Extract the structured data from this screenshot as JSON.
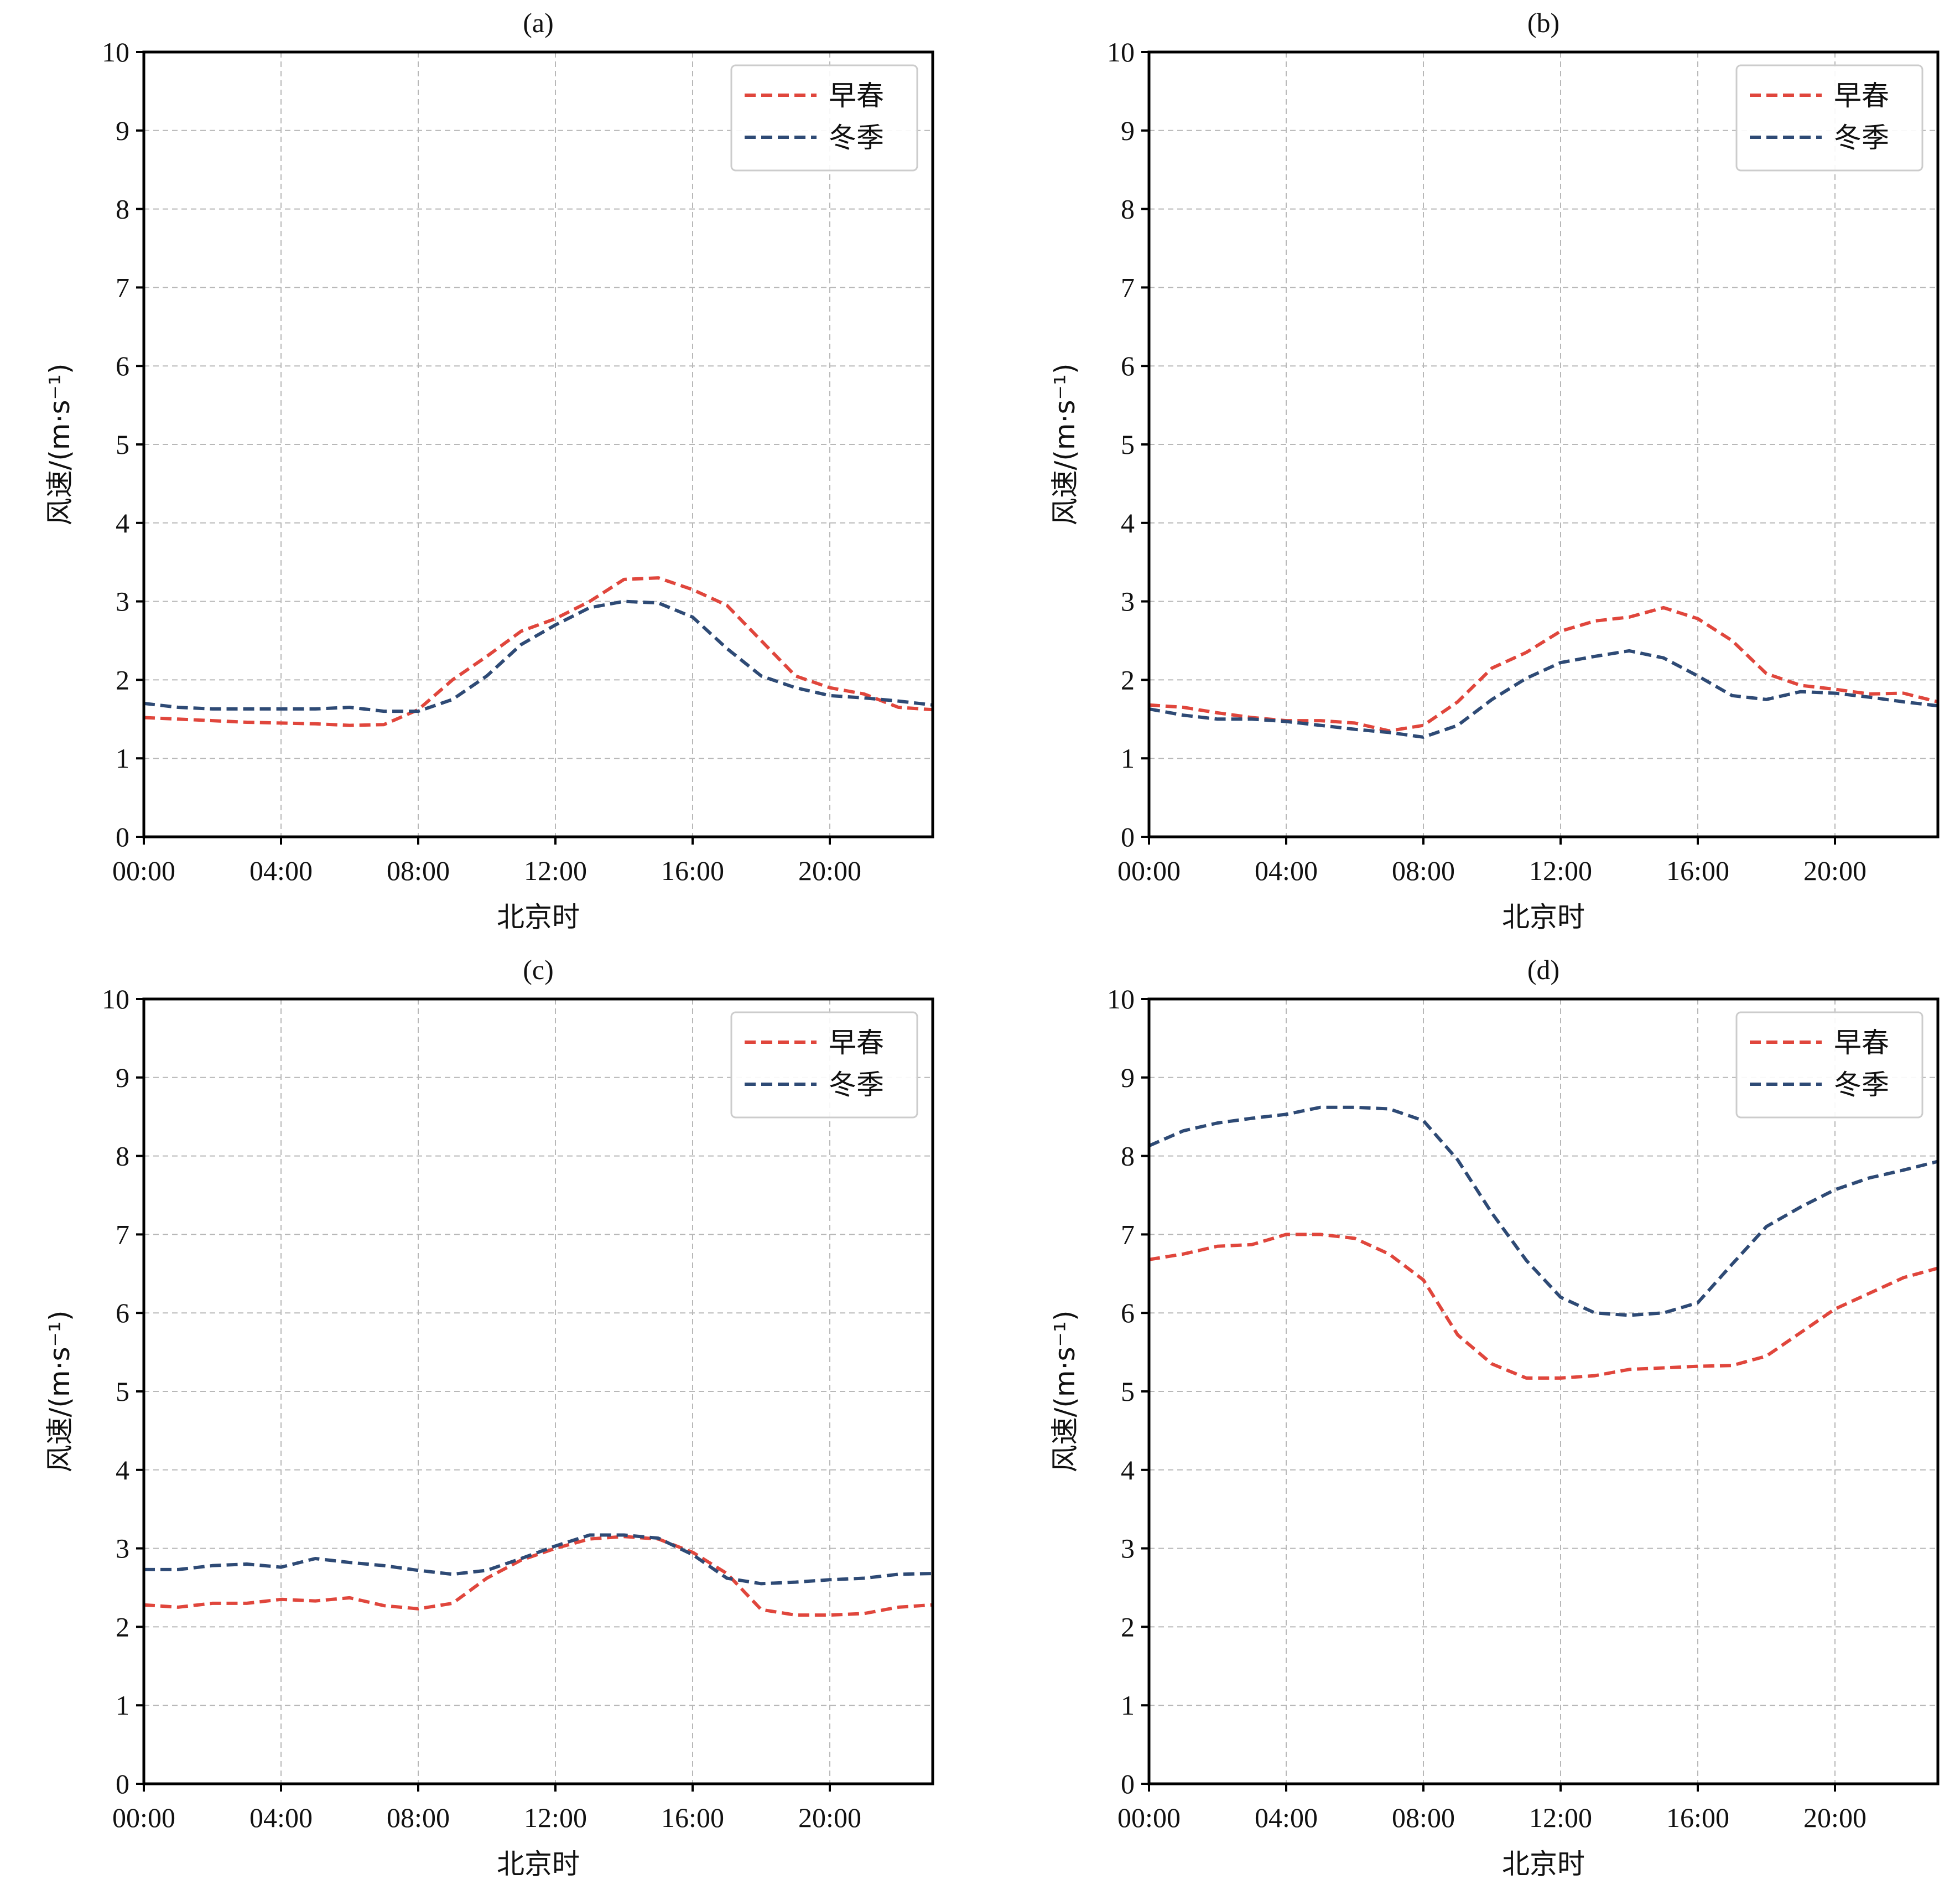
{
  "chart_data": [
    {
      "type": "line",
      "title": "(a)",
      "xlabel": "北京时",
      "ylabel": "风速/(m·s⁻¹)",
      "x": [
        0,
        1,
        2,
        3,
        4,
        5,
        6,
        7,
        8,
        9,
        10,
        11,
        12,
        13,
        14,
        15,
        16,
        17,
        18,
        19,
        20,
        21,
        22,
        23
      ],
      "xticks": [
        0,
        4,
        8,
        12,
        16,
        20
      ],
      "xtick_labels": [
        "00:00",
        "04:00",
        "08:00",
        "12:00",
        "16:00",
        "20:00"
      ],
      "xlim": [
        0,
        23
      ],
      "ylim": [
        0,
        10
      ],
      "yticks": [
        0,
        1,
        2,
        3,
        4,
        5,
        6,
        7,
        8,
        9,
        10
      ],
      "grid": true,
      "legend": "top-right",
      "series": [
        {
          "name": "早春",
          "color": "#e0463c",
          "values": [
            1.52,
            1.5,
            1.48,
            1.46,
            1.45,
            1.44,
            1.42,
            1.43,
            1.62,
            2.0,
            2.3,
            2.62,
            2.78,
            3.0,
            3.28,
            3.3,
            3.15,
            2.95,
            2.5,
            2.05,
            1.9,
            1.82,
            1.65,
            1.62
          ]
        },
        {
          "name": "冬季",
          "color": "#2e4a75",
          "values": [
            1.7,
            1.65,
            1.63,
            1.63,
            1.63,
            1.63,
            1.65,
            1.6,
            1.6,
            1.75,
            2.05,
            2.45,
            2.7,
            2.92,
            3.0,
            2.98,
            2.8,
            2.4,
            2.05,
            1.9,
            1.8,
            1.77,
            1.73,
            1.68
          ]
        }
      ]
    },
    {
      "type": "line",
      "title": "(b)",
      "xlabel": "北京时",
      "ylabel": "风速/(m·s⁻¹)",
      "x": [
        0,
        1,
        2,
        3,
        4,
        5,
        6,
        7,
        8,
        9,
        10,
        11,
        12,
        13,
        14,
        15,
        16,
        17,
        18,
        19,
        20,
        21,
        22,
        23
      ],
      "xticks": [
        0,
        4,
        8,
        12,
        16,
        20
      ],
      "xtick_labels": [
        "00:00",
        "04:00",
        "08:00",
        "12:00",
        "16:00",
        "20:00"
      ],
      "xlim": [
        0,
        23
      ],
      "ylim": [
        0,
        10
      ],
      "yticks": [
        0,
        1,
        2,
        3,
        4,
        5,
        6,
        7,
        8,
        9,
        10
      ],
      "grid": true,
      "legend": "top-right",
      "series": [
        {
          "name": "早春",
          "color": "#e0463c",
          "values": [
            1.68,
            1.65,
            1.58,
            1.52,
            1.48,
            1.48,
            1.45,
            1.35,
            1.42,
            1.72,
            2.15,
            2.35,
            2.62,
            2.75,
            2.8,
            2.92,
            2.78,
            2.5,
            2.08,
            1.93,
            1.88,
            1.82,
            1.83,
            1.72
          ]
        },
        {
          "name": "冬季",
          "color": "#2e4a75",
          "values": [
            1.63,
            1.55,
            1.5,
            1.5,
            1.47,
            1.42,
            1.37,
            1.33,
            1.27,
            1.42,
            1.75,
            2.02,
            2.22,
            2.3,
            2.37,
            2.28,
            2.05,
            1.8,
            1.75,
            1.85,
            1.83,
            1.78,
            1.72,
            1.67
          ]
        }
      ]
    },
    {
      "type": "line",
      "title": "(c)",
      "xlabel": "北京时",
      "ylabel": "风速/(m·s⁻¹)",
      "x": [
        0,
        1,
        2,
        3,
        4,
        5,
        6,
        7,
        8,
        9,
        10,
        11,
        12,
        13,
        14,
        15,
        16,
        17,
        18,
        19,
        20,
        21,
        22,
        23
      ],
      "xticks": [
        0,
        4,
        8,
        12,
        16,
        20
      ],
      "xtick_labels": [
        "00:00",
        "04:00",
        "08:00",
        "12:00",
        "16:00",
        "20:00"
      ],
      "xlim": [
        0,
        23
      ],
      "ylim": [
        0,
        10
      ],
      "yticks": [
        0,
        1,
        2,
        3,
        4,
        5,
        6,
        7,
        8,
        9,
        10
      ],
      "grid": true,
      "legend": "top-right",
      "series": [
        {
          "name": "早春",
          "color": "#e0463c",
          "values": [
            2.28,
            2.25,
            2.3,
            2.3,
            2.35,
            2.33,
            2.37,
            2.27,
            2.23,
            2.3,
            2.62,
            2.85,
            3.0,
            3.12,
            3.15,
            3.12,
            2.95,
            2.68,
            2.22,
            2.15,
            2.15,
            2.17,
            2.25,
            2.28
          ]
        },
        {
          "name": "冬季",
          "color": "#2e4a75",
          "values": [
            2.73,
            2.73,
            2.78,
            2.8,
            2.76,
            2.87,
            2.82,
            2.78,
            2.72,
            2.67,
            2.72,
            2.87,
            3.03,
            3.17,
            3.17,
            3.13,
            2.92,
            2.62,
            2.55,
            2.57,
            2.6,
            2.62,
            2.67,
            2.68
          ]
        }
      ]
    },
    {
      "type": "line",
      "title": "(d)",
      "xlabel": "北京时",
      "ylabel": "风速/(m·s⁻¹)",
      "x": [
        0,
        1,
        2,
        3,
        4,
        5,
        6,
        7,
        8,
        9,
        10,
        11,
        12,
        13,
        14,
        15,
        16,
        17,
        18,
        19,
        20,
        21,
        22,
        23
      ],
      "xticks": [
        0,
        4,
        8,
        12,
        16,
        20
      ],
      "xtick_labels": [
        "00:00",
        "04:00",
        "08:00",
        "12:00",
        "16:00",
        "20:00"
      ],
      "xlim": [
        0,
        23
      ],
      "ylim": [
        0,
        10
      ],
      "yticks": [
        0,
        1,
        2,
        3,
        4,
        5,
        6,
        7,
        8,
        9,
        10
      ],
      "grid": true,
      "legend": "top-right",
      "series": [
        {
          "name": "早春",
          "color": "#e0463c",
          "values": [
            6.68,
            6.75,
            6.85,
            6.87,
            7.0,
            7.0,
            6.95,
            6.75,
            6.42,
            5.72,
            5.35,
            5.17,
            5.17,
            5.2,
            5.28,
            5.3,
            5.32,
            5.33,
            5.45,
            5.75,
            6.05,
            6.25,
            6.45,
            6.57
          ]
        },
        {
          "name": "冬季",
          "color": "#2e4a75",
          "values": [
            8.13,
            8.32,
            8.42,
            8.48,
            8.53,
            8.62,
            8.62,
            8.6,
            8.45,
            7.95,
            7.27,
            6.67,
            6.2,
            6.0,
            5.97,
            6.0,
            6.13,
            6.62,
            7.1,
            7.35,
            7.57,
            7.72,
            7.82,
            7.93
          ]
        }
      ]
    }
  ]
}
